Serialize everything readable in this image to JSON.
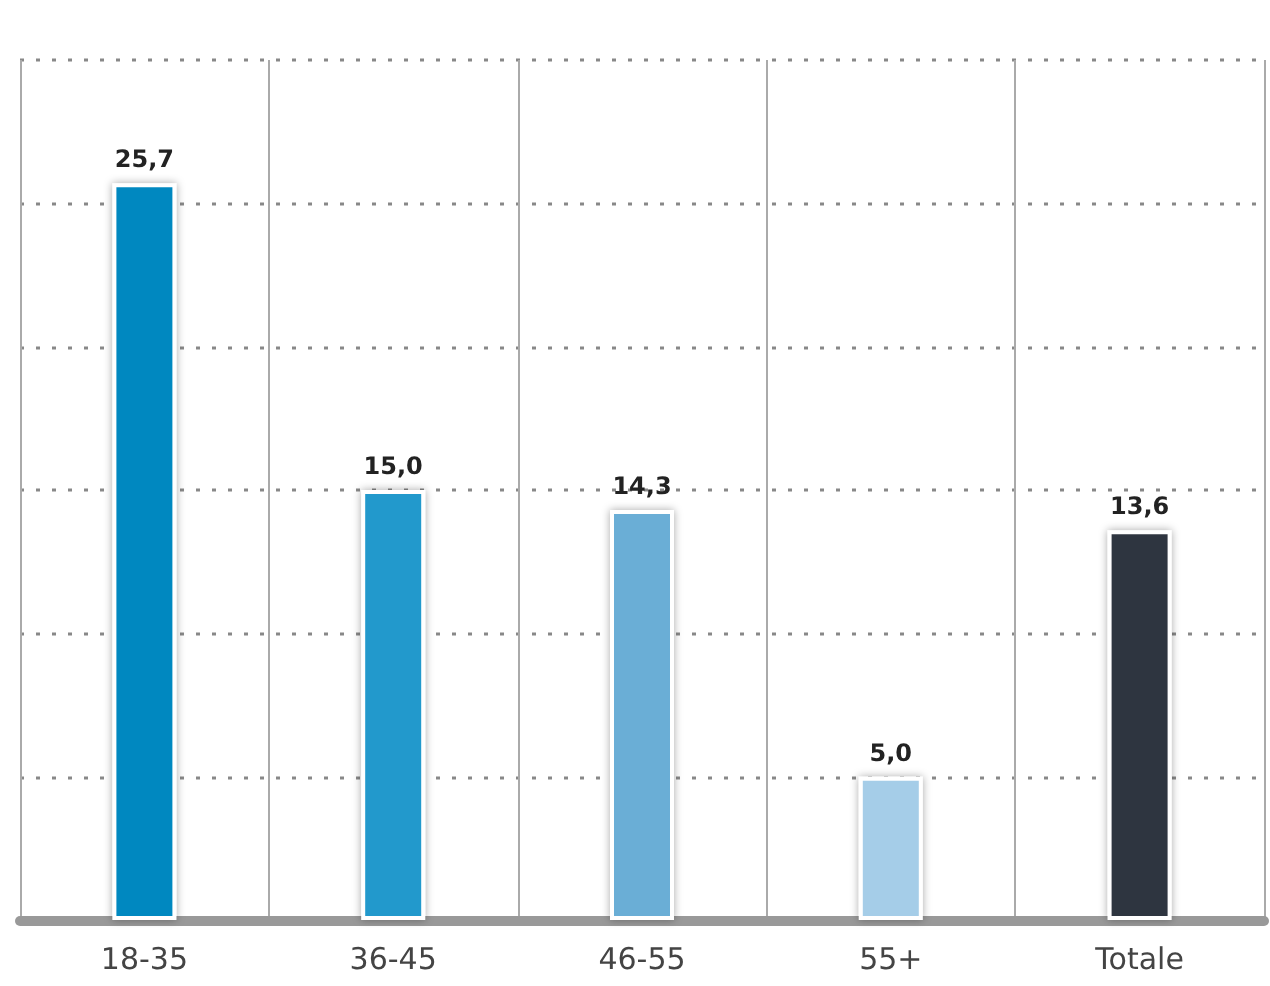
{
  "chart_data": {
    "type": "bar",
    "categories": [
      "18-35",
      "36-45",
      "46-55",
      "55+",
      "Totale"
    ],
    "values": [
      25.7,
      15.0,
      14.3,
      5.0,
      13.6
    ],
    "colors": [
      "#0088c0",
      "#2299cc",
      "#6aaed6",
      "#a5cde8",
      "#2f3440"
    ],
    "value_labels": [
      "25,7",
      "15,0",
      "14,3",
      "5,0",
      "13,6"
    ],
    "grid": true,
    "tick_labels": "x"
  }
}
